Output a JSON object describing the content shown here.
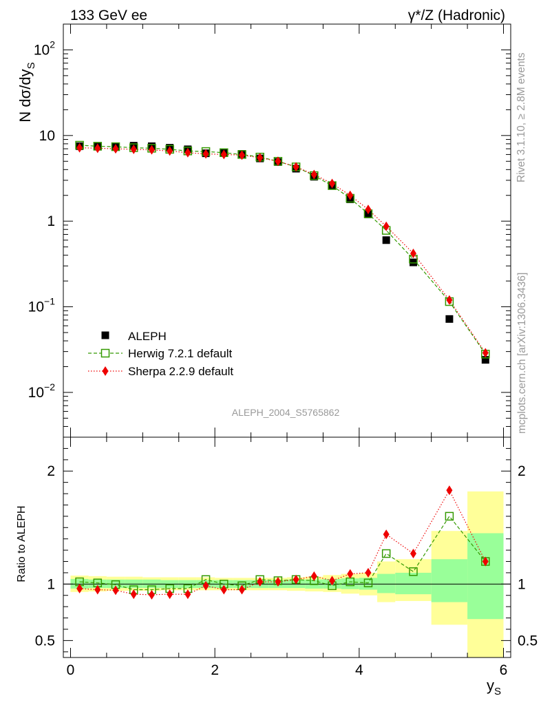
{
  "header": {
    "left": "133 GeV ee",
    "right": "γ*/Z (Hadronic)"
  },
  "side_labels": {
    "rivet": "Rivet 3.1.10, ≥ 2.8M events",
    "mcplots": "mcplots.cern.ch [arXiv:1306.3436]"
  },
  "watermark": "ALEPH_2004_S5765862",
  "chart_data": [
    {
      "type": "scatter",
      "title": "",
      "ylabel": "N dσ/dy_S",
      "xlabel": "",
      "yscale": "log",
      "xlim": [
        -0.1,
        6.1
      ],
      "ylim": [
        0.003,
        200
      ],
      "y_ticks": [
        {
          "value": 0.01,
          "base": "10",
          "exp": "−2"
        },
        {
          "value": 0.1,
          "base": "10",
          "exp": "−1"
        },
        {
          "value": 1,
          "base": "1",
          "exp": ""
        },
        {
          "value": 10,
          "base": "10",
          "exp": ""
        },
        {
          "value": 100,
          "base": "10",
          "exp": "2"
        }
      ],
      "legend_position": "bottom-left",
      "x": [
        0.125,
        0.375,
        0.625,
        0.875,
        1.125,
        1.375,
        1.625,
        1.875,
        2.125,
        2.375,
        2.625,
        2.875,
        3.125,
        3.375,
        3.625,
        3.875,
        4.125,
        4.375,
        4.75,
        5.25,
        5.75
      ],
      "series": [
        {
          "name": "ALEPH",
          "color": "#000000",
          "marker": "square",
          "values": [
            7.5,
            7.4,
            7.4,
            7.6,
            7.5,
            7.2,
            6.9,
            6.2,
            6.3,
            6.1,
            5.4,
            4.9,
            4.1,
            3.3,
            2.6,
            1.8,
            1.2,
            0.6,
            0.33,
            0.072,
            0.024
          ]
        },
        {
          "name": "Herwig 7.2.1 default",
          "color": "#339900",
          "marker": "open-square",
          "line": "dashed",
          "values": [
            7.7,
            7.5,
            7.4,
            7.2,
            7.1,
            6.9,
            6.6,
            6.5,
            6.3,
            6.0,
            5.6,
            5.0,
            4.3,
            3.4,
            2.6,
            1.85,
            1.22,
            0.78,
            0.36,
            0.115,
            0.028
          ]
        },
        {
          "name": "Sherpa 2.2.9 default",
          "color": "#ee0000",
          "marker": "diamond",
          "line": "dotted",
          "values": [
            7.2,
            7.1,
            7.0,
            6.9,
            6.8,
            6.6,
            6.3,
            6.1,
            6.0,
            5.9,
            5.5,
            5.0,
            4.3,
            3.5,
            2.75,
            2.0,
            1.37,
            0.87,
            0.42,
            0.12,
            0.029
          ]
        }
      ]
    },
    {
      "type": "scatter",
      "title": "",
      "ylabel": "Ratio to ALEPH",
      "xlabel": "y_S",
      "xlim": [
        -0.1,
        6.1
      ],
      "ylim": [
        0.35,
        2.3
      ],
      "x_ticks": [
        0,
        2,
        4,
        6
      ],
      "y_ticks": [
        0.5,
        1,
        2
      ],
      "x_edges": [
        0,
        0.25,
        0.5,
        0.75,
        1.0,
        1.25,
        1.5,
        1.75,
        2.0,
        2.25,
        2.5,
        2.75,
        3.0,
        3.25,
        3.5,
        3.75,
        4.0,
        4.25,
        4.5,
        5.0,
        5.5,
        6.0
      ],
      "band_stat_lo": [
        0.96,
        0.965,
        0.965,
        0.965,
        0.965,
        0.965,
        0.965,
        0.965,
        0.965,
        0.965,
        0.965,
        0.965,
        0.965,
        0.96,
        0.96,
        0.955,
        0.95,
        0.92,
        0.91,
        0.84,
        0.69
      ],
      "band_stat_hi": [
        1.045,
        1.04,
        1.04,
        1.04,
        1.04,
        1.035,
        1.035,
        1.035,
        1.035,
        1.035,
        1.035,
        1.035,
        1.04,
        1.04,
        1.045,
        1.05,
        1.055,
        1.09,
        1.1,
        1.22,
        1.45
      ],
      "band_tot_lo": [
        0.93,
        0.935,
        0.94,
        0.94,
        0.94,
        0.945,
        0.945,
        0.945,
        0.945,
        0.945,
        0.945,
        0.945,
        0.94,
        0.935,
        0.93,
        0.915,
        0.9,
        0.84,
        0.85,
        0.64,
        0.35
      ],
      "band_tot_hi": [
        1.075,
        1.07,
        1.065,
        1.065,
        1.06,
        1.06,
        1.06,
        1.06,
        1.055,
        1.055,
        1.055,
        1.055,
        1.06,
        1.065,
        1.08,
        1.09,
        1.1,
        1.2,
        1.22,
        1.47,
        1.82
      ],
      "band_colors": {
        "total": "#ffff99",
        "stat": "#99ff99"
      },
      "x": [
        0.125,
        0.375,
        0.625,
        0.875,
        1.125,
        1.375,
        1.625,
        1.875,
        2.125,
        2.375,
        2.625,
        2.875,
        3.125,
        3.375,
        3.625,
        3.875,
        4.125,
        4.375,
        4.75,
        5.25,
        5.75
      ],
      "series": [
        {
          "name": "Herwig 7.2.1 default",
          "color": "#339900",
          "marker": "open-square",
          "line": "dashed",
          "values": [
            1.02,
            1.01,
            0.995,
            0.95,
            0.95,
            0.96,
            0.96,
            1.04,
            1.0,
            0.985,
            1.04,
            1.03,
            1.04,
            1.03,
            0.985,
            1.02,
            1.01,
            1.27,
            1.11,
            1.6,
            1.2
          ]
        },
        {
          "name": "Sherpa 2.2.9 default",
          "color": "#ee0000",
          "marker": "diamond",
          "line": "dotted",
          "values": [
            0.96,
            0.95,
            0.945,
            0.91,
            0.905,
            0.91,
            0.91,
            0.985,
            0.95,
            0.95,
            1.02,
            1.02,
            1.04,
            1.07,
            1.03,
            1.09,
            1.1,
            1.44,
            1.27,
            1.83,
            1.2
          ]
        }
      ]
    }
  ]
}
